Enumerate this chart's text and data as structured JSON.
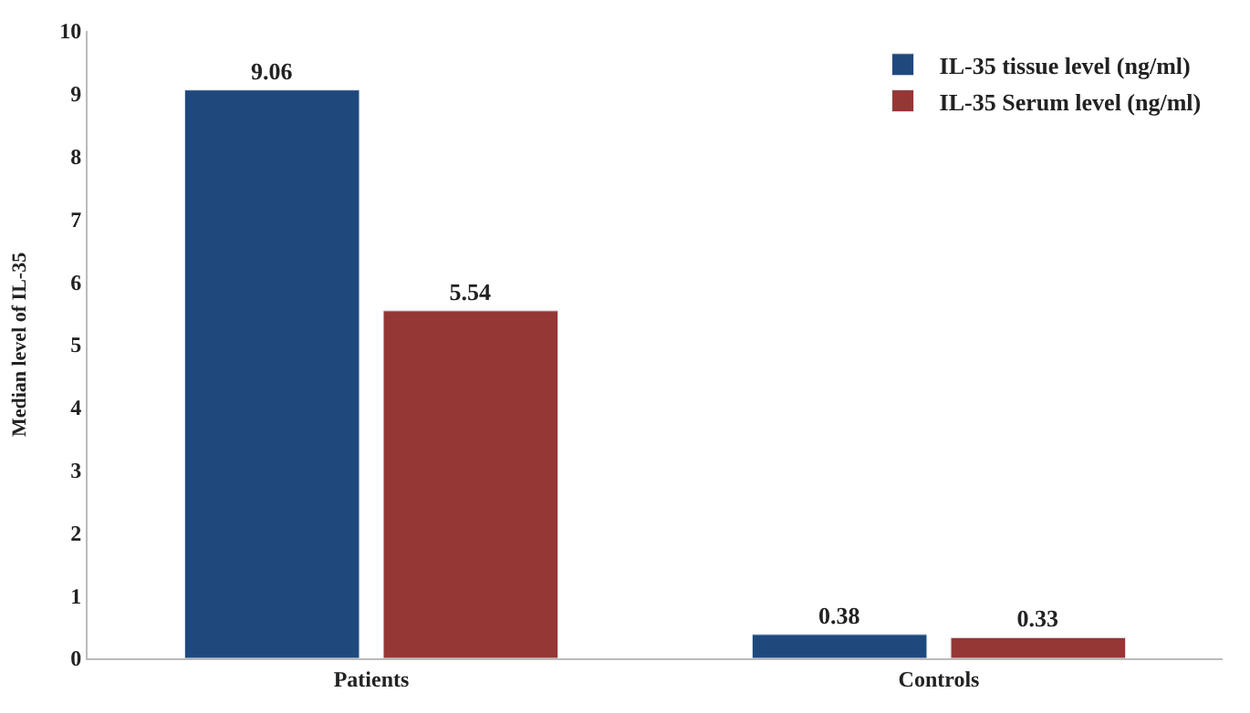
{
  "chart_data": {
    "type": "bar",
    "ylabel": "Median level of IL-35",
    "categories": [
      "Patients",
      "Controls"
    ],
    "series": [
      {
        "name": "IL-35 tissue level (ng/ml)",
        "color": "#1f497d",
        "values": [
          9.06,
          0.38
        ]
      },
      {
        "name": "IL-35 Serum level (ng/ml)",
        "color": "#953735",
        "values": [
          5.54,
          0.33
        ]
      }
    ],
    "ylim": [
      0,
      10
    ],
    "yticks": [
      0,
      1,
      2,
      3,
      4,
      5,
      6,
      7,
      8,
      9,
      10
    ],
    "data_labels": true,
    "legend": "top right"
  }
}
